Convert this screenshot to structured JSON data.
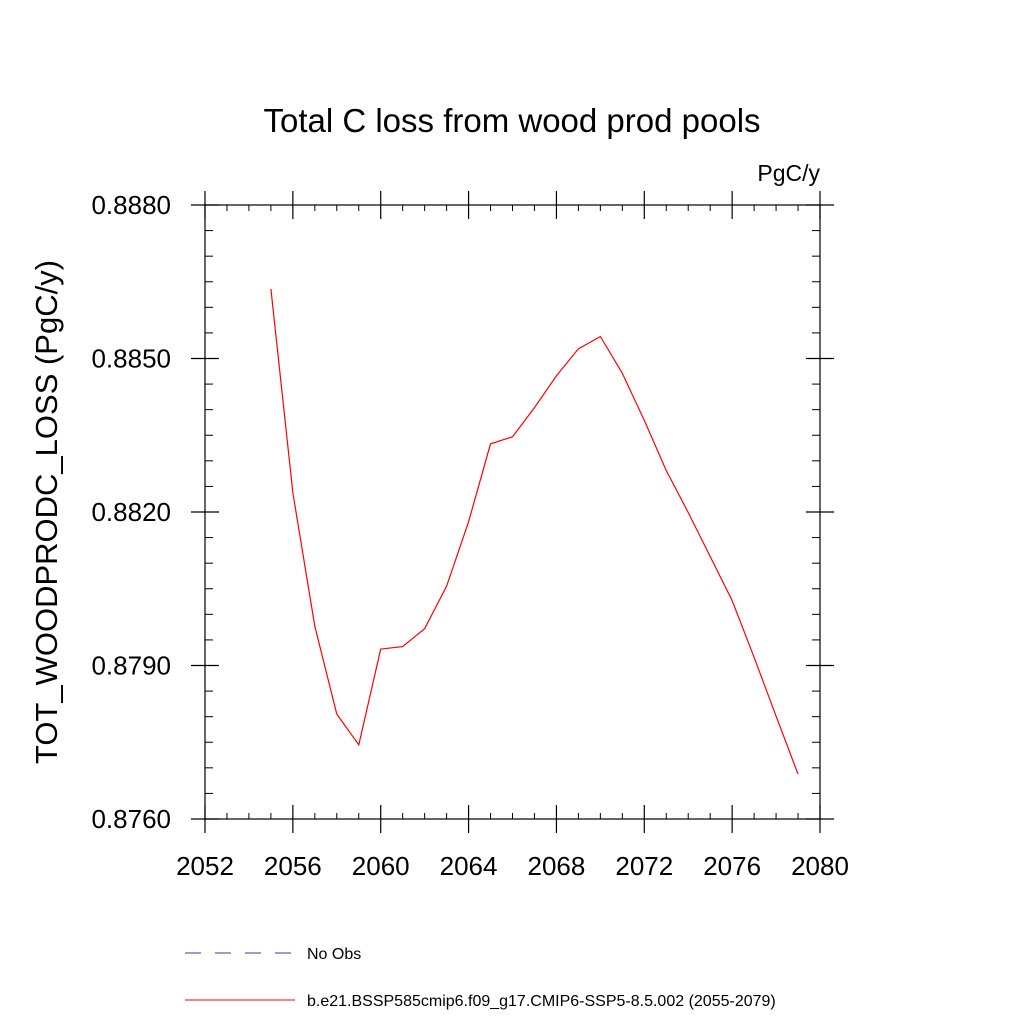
{
  "chart_data": {
    "type": "line",
    "title": "Total C loss from wood prod pools",
    "units": "PgC/y",
    "xlabel": "",
    "ylabel": "TOT_WOODPRODC_LOSS  (PgC/y)",
    "xlim": [
      2052,
      2080
    ],
    "ylim": [
      0.876,
      0.888
    ],
    "x_major_ticks": [
      2052,
      2056,
      2060,
      2064,
      2068,
      2072,
      2076,
      2080
    ],
    "x_minor_step": 1,
    "y_major_ticks": [
      0.876,
      0.879,
      0.882,
      0.885,
      0.888
    ],
    "y_tick_labels": [
      "0.8760",
      "0.8790",
      "0.8820",
      "0.8850",
      "0.8880"
    ],
    "y_minor_step": 0.0005,
    "grid": false,
    "legend_position": "bottom",
    "series": [
      {
        "name": "No Obs",
        "color": "#3b3b9e",
        "dash": "dashed",
        "x": [],
        "y": []
      },
      {
        "name": "b.e21.BSSP585cmip6.f09_g17.CMIP6-SSP5-8.5.002 (2055-2079)",
        "color": "#ff0000",
        "dash": "solid",
        "x": [
          2055,
          2056,
          2057,
          2058,
          2059,
          2060,
          2061,
          2062,
          2063,
          2064,
          2065,
          2066,
          2067,
          2068,
          2069,
          2070,
          2071,
          2072,
          2073,
          2074,
          2075,
          2076,
          2077,
          2078,
          2079
        ],
        "y": [
          0.88636,
          0.88237,
          0.87977,
          0.87805,
          0.87745,
          0.87932,
          0.87937,
          0.87972,
          0.88055,
          0.88181,
          0.88333,
          0.88347,
          0.88404,
          0.88466,
          0.88519,
          0.88543,
          0.88471,
          0.88379,
          0.88281,
          0.88199,
          0.88113,
          0.88027,
          0.87916,
          0.87801,
          0.87688
        ]
      }
    ]
  }
}
